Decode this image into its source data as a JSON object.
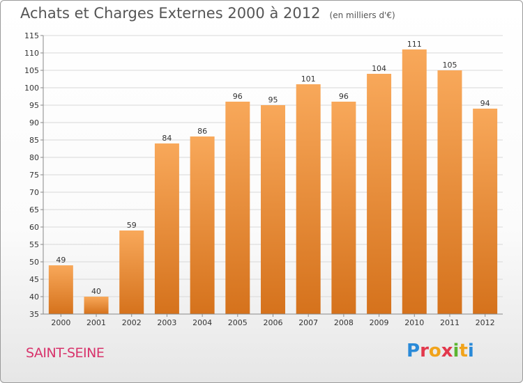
{
  "header": {
    "title": "Achats et Charges Externes 2000 à 2012",
    "subtitle": "(en milliers d'€)"
  },
  "footer": {
    "place": "SAINT-SEINE",
    "brand": "Proxiti"
  },
  "colors": {
    "bar_top": "#f8a85a",
    "bar_bottom": "#d5721c",
    "grid": "#d8d8d8",
    "axis": "#888888"
  },
  "chart_data": {
    "type": "bar",
    "title": "Achats et Charges Externes 2000 à 2012",
    "subtitle": "(en milliers d'€)",
    "categories": [
      "2000",
      "2001",
      "2002",
      "2003",
      "2004",
      "2005",
      "2006",
      "2007",
      "2008",
      "2009",
      "2010",
      "2011",
      "2012"
    ],
    "values": [
      49,
      40,
      59,
      84,
      86,
      96,
      95,
      101,
      96,
      104,
      111,
      105,
      94
    ],
    "data_labels": [
      "49",
      "40",
      "59",
      "84",
      "86",
      "96",
      "95",
      "101",
      "96",
      "104",
      "111",
      "105",
      "94"
    ],
    "ylim": [
      35,
      115
    ],
    "yticks": [
      35,
      40,
      45,
      50,
      55,
      60,
      65,
      70,
      75,
      80,
      85,
      90,
      95,
      100,
      105,
      110,
      115
    ],
    "grid": true,
    "legend": "none",
    "xlabel": "",
    "ylabel": ""
  }
}
